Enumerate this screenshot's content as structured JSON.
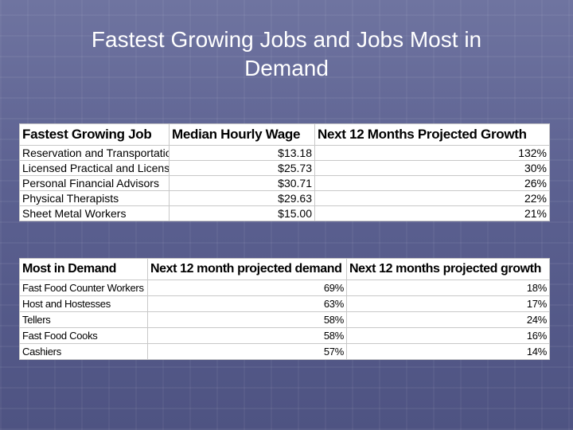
{
  "slide": {
    "title_line1": "Fastest Growing Jobs  and Jobs Most in",
    "title_line2": "Demand"
  },
  "growth_table": {
    "headers": [
      "Fastest Growing Job",
      "Median Hourly Wage",
      "Next 12 Months Projected Growth"
    ],
    "rows": [
      [
        "Reservation and Transportation Ticket Agents",
        "$13.18",
        "132%"
      ],
      [
        "Licensed Practical and Licensed Vocational Nurses",
        "$25.73",
        "30%"
      ],
      [
        "Personal Financial Advisors",
        "$30.71",
        "26%"
      ],
      [
        "Physical Therapists",
        "$29.63",
        "22%"
      ],
      [
        "Sheet Metal Workers",
        "$15.00",
        "21%"
      ]
    ]
  },
  "demand_table": {
    "headers": [
      "Most in Demand",
      "Next 12 month projected demand",
      "Next 12 months projected growth"
    ],
    "rows": [
      [
        "Fast Food Counter Workers",
        "69%",
        "18%"
      ],
      [
        "Host and Hostesses",
        "63%",
        "17%"
      ],
      [
        "Tellers",
        "58%",
        "24%"
      ],
      [
        "Fast Food Cooks",
        "58%",
        "16%"
      ],
      [
        "Cashiers",
        "57%",
        "14%"
      ]
    ]
  }
}
